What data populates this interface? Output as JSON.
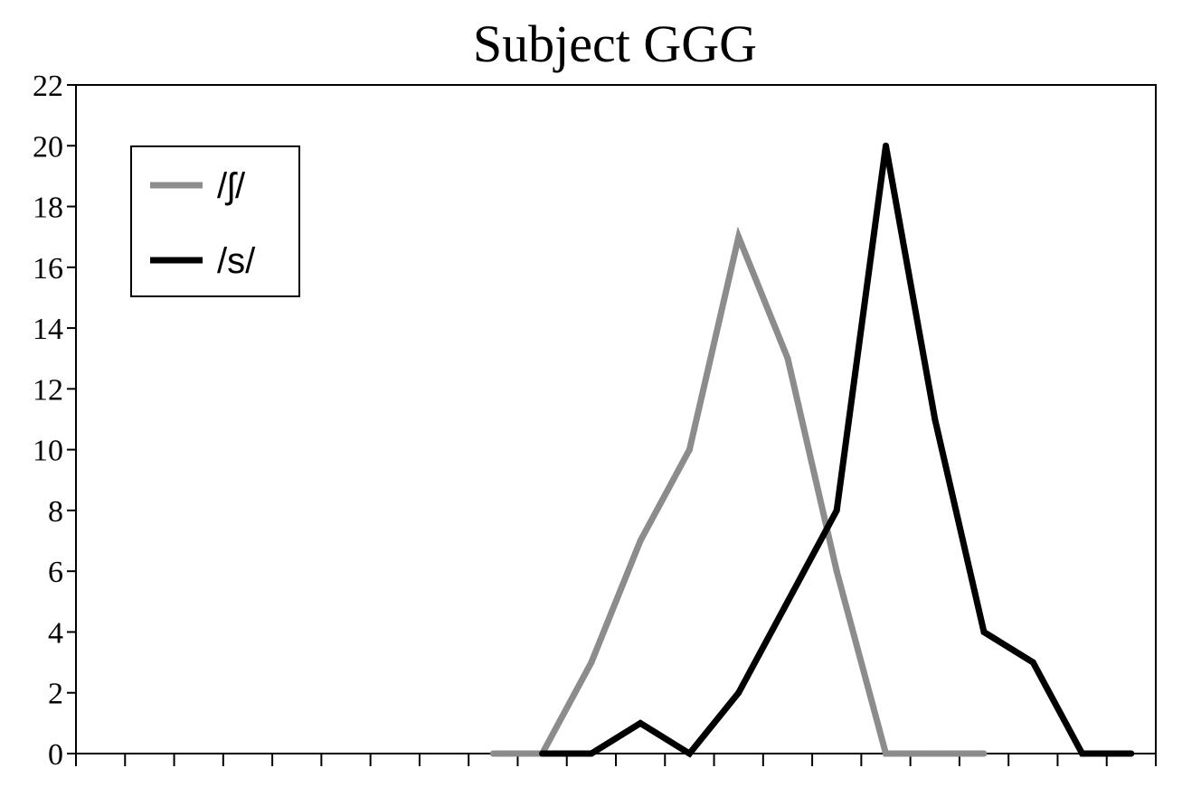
{
  "chart_data": {
    "type": "line",
    "title": "Subject GGG",
    "xlabel": "",
    "ylabel": "",
    "ylim": [
      0,
      22
    ],
    "yticks": [
      0,
      2,
      4,
      6,
      8,
      10,
      12,
      14,
      16,
      18,
      20,
      22
    ],
    "x_tick_count": 22,
    "grid": false,
    "legend": "top-left",
    "series": [
      {
        "name": "/ʃ/",
        "color": "#8c8c8c",
        "x": [
          9,
          10,
          11,
          12,
          13,
          14,
          15,
          16,
          17,
          18,
          19
        ],
        "values": [
          0,
          0,
          3,
          7,
          10,
          17,
          13,
          6,
          0,
          0,
          0
        ]
      },
      {
        "name": "/s/",
        "color": "#000000",
        "x": [
          10,
          11,
          12,
          13,
          14,
          15,
          16,
          17,
          18,
          19,
          20,
          21,
          22
        ],
        "values": [
          0,
          0,
          1,
          0,
          2,
          5,
          8,
          20,
          11,
          4,
          3,
          0,
          0
        ]
      }
    ]
  }
}
